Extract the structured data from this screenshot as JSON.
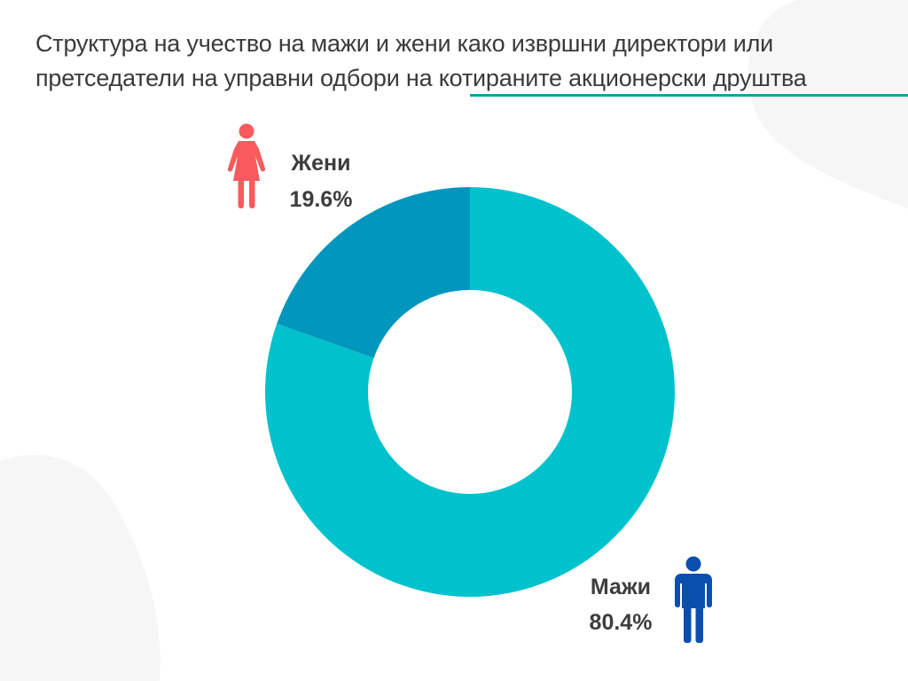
{
  "title": "Структура на учество на мажи и жени како извршни директори или претседатели на управни одбори на котираните акционерски друштва",
  "colors": {
    "women_slice": "#0096bd",
    "men_slice": "#00c2cc",
    "women_icon": "#f95a5e",
    "men_icon": "#0a4fae",
    "underline": "#14a39a"
  },
  "chart_data": {
    "type": "pie",
    "donut": true,
    "start": "top",
    "direction": "counterclockwise-from-women",
    "slices": [
      {
        "label": "Жени",
        "value": 19.6,
        "value_label": "19.6%",
        "color": "#0096bd",
        "icon": "woman-icon"
      },
      {
        "label": "Мажи",
        "value": 80.4,
        "value_label": "80.4%",
        "color": "#00c2cc",
        "icon": "man-icon"
      }
    ]
  }
}
